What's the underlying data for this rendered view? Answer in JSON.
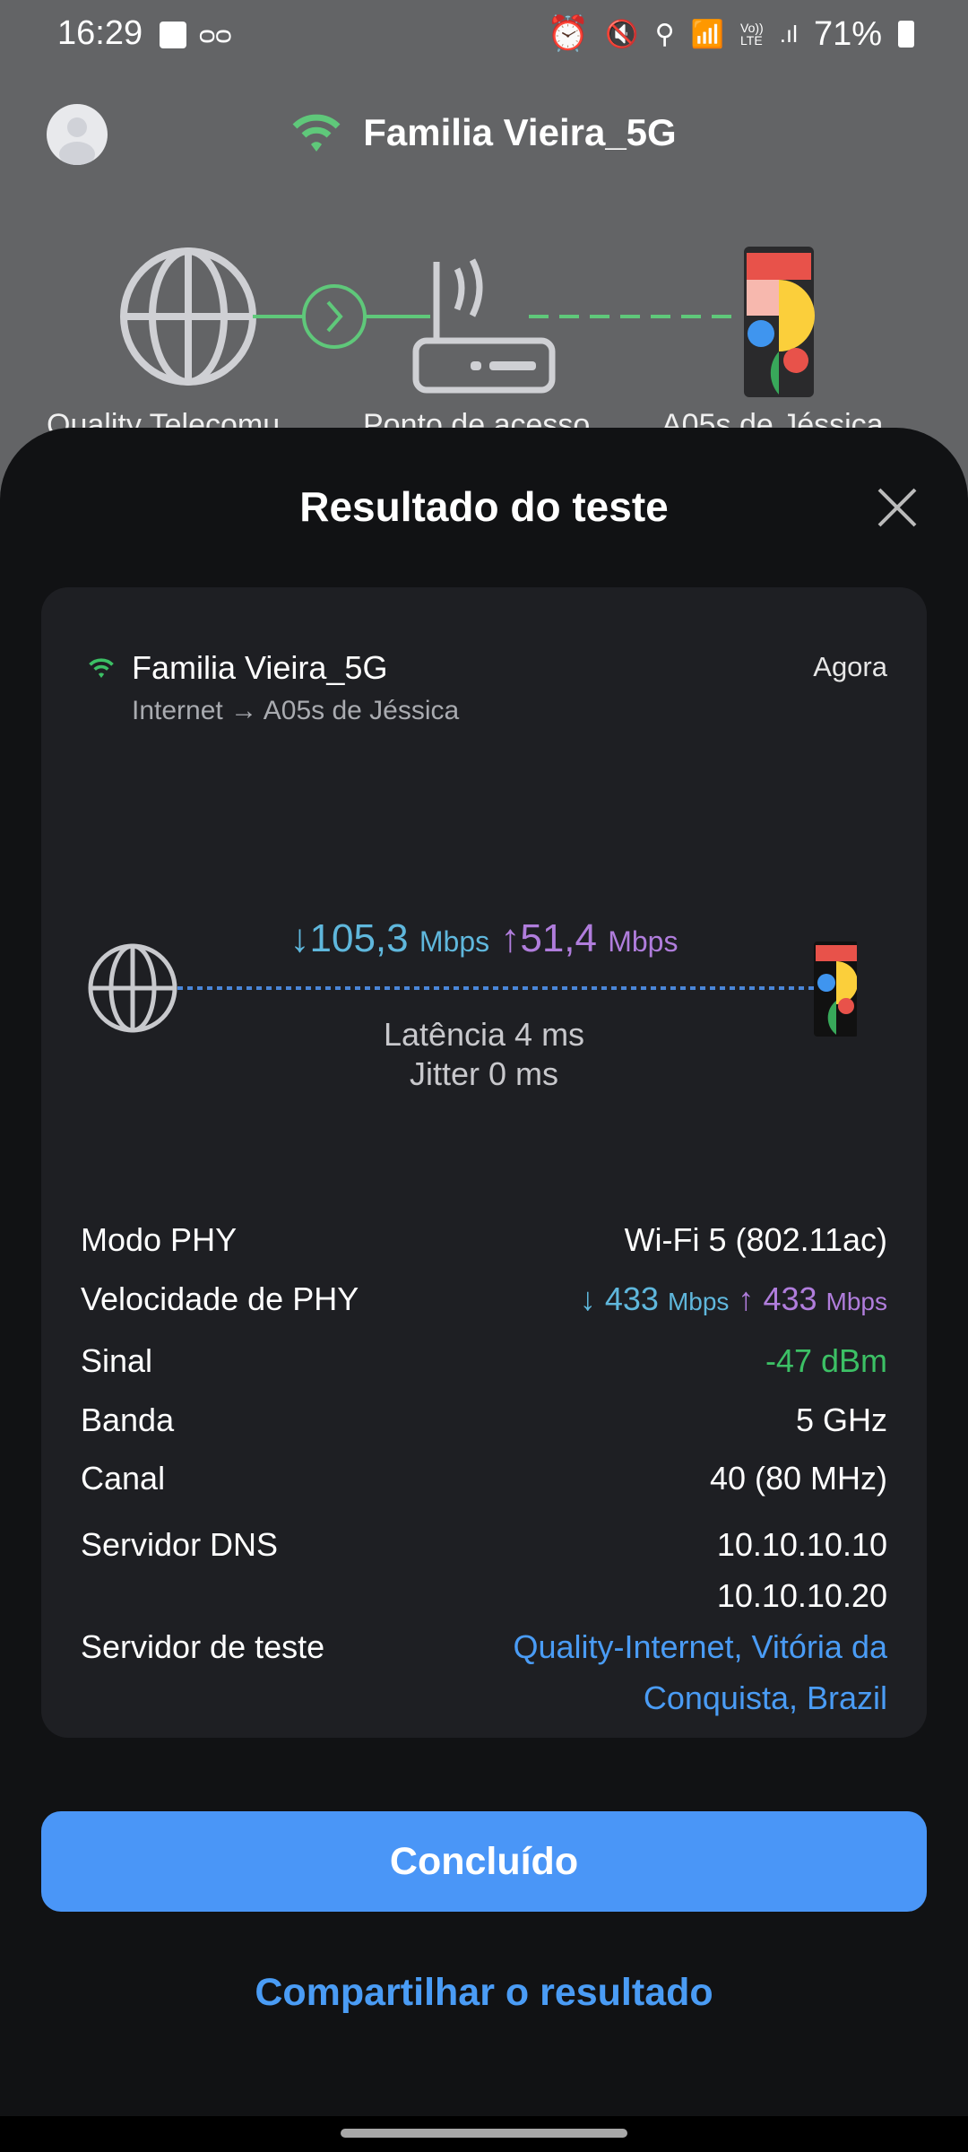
{
  "status_bar": {
    "time": "16:29",
    "battery": "71%",
    "icons": [
      "image-icon",
      "voicemail-icon",
      "alarm-icon",
      "mute-icon",
      "location-icon",
      "wifi-icon",
      "volte-icon",
      "signal-icon",
      "battery-icon"
    ]
  },
  "header": {
    "network_name": "Familia Vieira_5G"
  },
  "topology": {
    "labels": [
      "Quality Telecomu",
      "Ponto de acesso",
      "A05s de Jéssica"
    ]
  },
  "sheet": {
    "title": "Resultado do teste",
    "card": {
      "network_name": "Familia Vieira_5G",
      "route": "Internet → A05s de Jéssica",
      "time": "Agora",
      "download": "105,3",
      "download_unit": "Mbps",
      "download_arrow": "↓",
      "upload": "51,4",
      "upload_unit": "Mbps",
      "upload_arrow": "↑",
      "latency": "Latência 4 ms",
      "jitter": "Jitter 0 ms",
      "rows": [
        {
          "label": "Modo PHY",
          "value": "Wi-Fi 5 (802.11ac)"
        },
        {
          "label": "Velocidade de PHY",
          "down": "433",
          "up": "433",
          "unit": "Mbps"
        },
        {
          "label": "Sinal",
          "value": "-47 dBm"
        },
        {
          "label": "Banda",
          "value": "5 GHz"
        },
        {
          "label": "Canal",
          "value": "40 (80 MHz)"
        },
        {
          "label": "Servidor DNS",
          "value": "10.10.10.10",
          "value2": "10.10.10.20"
        },
        {
          "label": "Servidor de teste",
          "value": "Quality-Internet, Vitória da",
          "value2": "Conquista, Brazil"
        }
      ]
    },
    "done_label": "Concluído",
    "share_label": "Compartilhar o resultado"
  },
  "colors": {
    "accent": "#4a96f7",
    "download": "#5fb7dc",
    "upload": "#b07ddc",
    "signal_good": "#3cc065",
    "wifi": "#5fc87a"
  }
}
